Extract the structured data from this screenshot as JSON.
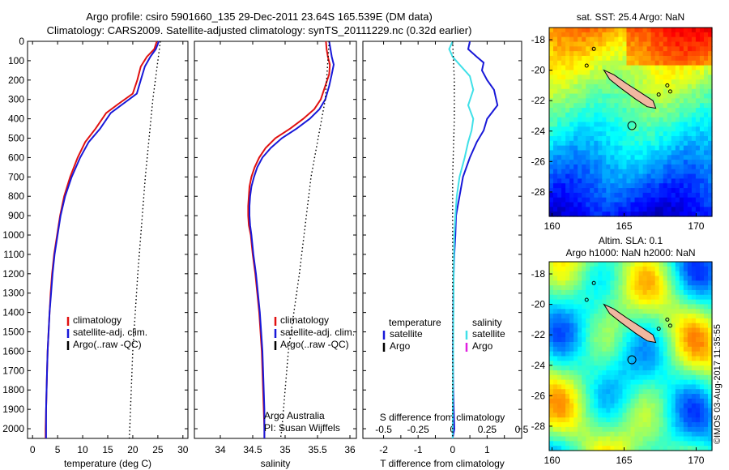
{
  "titles": {
    "line1": "Argo profile: csiro 5901660_135 29-Dec-2011 23.64S 165.539E (DM data)",
    "line2": "Climatology: CARS2009. Satellite-adjusted climatology: synTS_20111229.nc (0.32d earlier)"
  },
  "stamp": "©IMOS 03-Aug-2017 11:35:55",
  "colors": {
    "climatology": "#e01010",
    "satellite": "#1818d8",
    "argo": "#000000",
    "cyan": "#40e0e8",
    "magenta": "#e020e0"
  },
  "chart_data": [
    {
      "type": "line",
      "name": "temperature",
      "xlabel": "temperature (deg C)",
      "ylabel": "",
      "xlim": [
        -1,
        31
      ],
      "ylim": [
        2050,
        0
      ],
      "xticks": [
        0,
        5,
        10,
        15,
        20,
        25,
        30
      ],
      "yticks": [
        0,
        100,
        200,
        300,
        400,
        500,
        600,
        700,
        800,
        900,
        1000,
        1100,
        1200,
        1300,
        1400,
        1500,
        1600,
        1700,
        1800,
        1900,
        2000
      ],
      "legend": {
        "position": "lower-center",
        "entries": [
          "climatology",
          "satellite-adj. clim.",
          "Argo(..raw -QC)"
        ]
      },
      "series": [
        {
          "name": "climatology",
          "color_key": "climatology",
          "points": [
            [
              24.8,
              0
            ],
            [
              24.3,
              40
            ],
            [
              22.8,
              80
            ],
            [
              21.6,
              130
            ],
            [
              20.9,
              200
            ],
            [
              20.0,
              270
            ],
            [
              17.3,
              320
            ],
            [
              14.7,
              370
            ],
            [
              12.6,
              450
            ],
            [
              10.5,
              520
            ],
            [
              9.0,
              600
            ],
            [
              7.5,
              700
            ],
            [
              6.3,
              800
            ],
            [
              5.5,
              900
            ],
            [
              4.9,
              1000
            ],
            [
              4.3,
              1100
            ],
            [
              3.9,
              1200
            ],
            [
              3.6,
              1300
            ],
            [
              3.4,
              1400
            ],
            [
              3.2,
              1500
            ],
            [
              3.0,
              1600
            ],
            [
              2.9,
              1700
            ],
            [
              2.8,
              1800
            ],
            [
              2.7,
              1900
            ],
            [
              2.6,
              2000
            ],
            [
              2.6,
              2050
            ]
          ]
        },
        {
          "name": "satellite-adj. clim.",
          "color_key": "satellite",
          "points": [
            [
              25.2,
              0
            ],
            [
              24.6,
              40
            ],
            [
              23.5,
              80
            ],
            [
              22.4,
              130
            ],
            [
              21.6,
              200
            ],
            [
              20.8,
              270
            ],
            [
              18.2,
              320
            ],
            [
              15.6,
              370
            ],
            [
              13.5,
              450
            ],
            [
              11.2,
              520
            ],
            [
              9.5,
              600
            ],
            [
              7.8,
              700
            ],
            [
              6.5,
              800
            ],
            [
              5.6,
              900
            ],
            [
              5.0,
              1000
            ],
            [
              4.4,
              1100
            ],
            [
              4.0,
              1200
            ],
            [
              3.7,
              1300
            ],
            [
              3.4,
              1400
            ],
            [
              3.2,
              1500
            ],
            [
              3.0,
              1600
            ],
            [
              2.9,
              1700
            ],
            [
              2.8,
              1800
            ],
            [
              2.7,
              1900
            ],
            [
              2.7,
              2000
            ],
            [
              2.7,
              2050
            ]
          ]
        },
        {
          "name": "Argo(..raw -QC)",
          "color_key": "argo",
          "dotted": true,
          "points": [
            [
              25.5,
              0
            ],
            [
              24.0,
              300
            ],
            [
              22.5,
              700
            ],
            [
              21.0,
              1200
            ],
            [
              20.0,
              1600
            ],
            [
              19.4,
              2000
            ],
            [
              19.3,
              2050
            ]
          ]
        }
      ]
    },
    {
      "type": "line",
      "name": "salinity",
      "xlabel": "salinity",
      "ylabel": "",
      "xlim": [
        33.6,
        36.1
      ],
      "ylim": [
        2050,
        0
      ],
      "xticks": [
        34,
        34.5,
        35,
        35.5,
        36
      ],
      "legend": {
        "position": "lower-center",
        "entries": [
          "climatology",
          "satellite-adj. clim.",
          "Argo(..raw -QC)"
        ]
      },
      "annotation": [
        "Argo Australia",
        "PI: Susan Wijffels"
      ],
      "series": [
        {
          "name": "climatology",
          "color_key": "climatology",
          "points": [
            [
              35.63,
              0
            ],
            [
              35.64,
              40
            ],
            [
              35.66,
              80
            ],
            [
              35.69,
              120
            ],
            [
              35.68,
              170
            ],
            [
              35.62,
              230
            ],
            [
              35.55,
              300
            ],
            [
              35.45,
              350
            ],
            [
              35.28,
              400
            ],
            [
              35.08,
              450
            ],
            [
              34.85,
              500
            ],
            [
              34.7,
              550
            ],
            [
              34.6,
              600
            ],
            [
              34.53,
              650
            ],
            [
              34.48,
              700
            ],
            [
              34.45,
              750
            ],
            [
              34.44,
              800
            ],
            [
              34.43,
              850
            ],
            [
              34.43,
              900
            ],
            [
              34.44,
              950
            ],
            [
              34.47,
              1000
            ],
            [
              34.5,
              1100
            ],
            [
              34.54,
              1200
            ],
            [
              34.57,
              1300
            ],
            [
              34.6,
              1400
            ],
            [
              34.62,
              1500
            ],
            [
              34.64,
              1600
            ],
            [
              34.65,
              1700
            ],
            [
              34.66,
              1800
            ],
            [
              34.67,
              1900
            ],
            [
              34.68,
              2000
            ],
            [
              34.68,
              2050
            ]
          ]
        },
        {
          "name": "satellite-adj. clim.",
          "color_key": "satellite",
          "points": [
            [
              35.68,
              0
            ],
            [
              35.7,
              40
            ],
            [
              35.72,
              80
            ],
            [
              35.75,
              120
            ],
            [
              35.72,
              170
            ],
            [
              35.68,
              230
            ],
            [
              35.62,
              300
            ],
            [
              35.53,
              350
            ],
            [
              35.38,
              400
            ],
            [
              35.18,
              450
            ],
            [
              34.95,
              500
            ],
            [
              34.78,
              550
            ],
            [
              34.65,
              600
            ],
            [
              34.57,
              650
            ],
            [
              34.52,
              700
            ],
            [
              34.48,
              750
            ],
            [
              34.46,
              800
            ],
            [
              34.45,
              850
            ],
            [
              34.45,
              900
            ],
            [
              34.46,
              950
            ],
            [
              34.48,
              1000
            ],
            [
              34.51,
              1100
            ],
            [
              34.55,
              1200
            ],
            [
              34.58,
              1300
            ],
            [
              34.61,
              1400
            ],
            [
              34.63,
              1500
            ],
            [
              34.65,
              1600
            ],
            [
              34.66,
              1700
            ],
            [
              34.67,
              1800
            ],
            [
              34.68,
              1900
            ],
            [
              34.68,
              2000
            ],
            [
              34.68,
              2050
            ]
          ]
        },
        {
          "name": "Argo(..raw -QC)",
          "color_key": "argo",
          "dotted": true,
          "points": [
            [
              35.68,
              0
            ],
            [
              35.62,
              300
            ],
            [
              35.4,
              700
            ],
            [
              35.22,
              1200
            ],
            [
              35.05,
              1600
            ],
            [
              34.95,
              2000
            ],
            [
              34.93,
              2050
            ]
          ]
        }
      ]
    },
    {
      "type": "line",
      "name": "differences",
      "xlabel_bottom": "T difference from climatology",
      "xlabel_top": "S difference from climatology",
      "xlim": [
        -2.6,
        2.0
      ],
      "xlim_top": [
        -0.65,
        0.5
      ],
      "ylim": [
        2050,
        0
      ],
      "xticks_bottom": [
        -2,
        -1.5,
        -1,
        -0.5,
        0,
        0.5,
        1,
        1.5
      ],
      "xticks_bottom_labels": [
        "-2",
        "",
        "-1",
        "",
        "0",
        "",
        "1",
        ""
      ],
      "xticks_top": [
        -0.5,
        -0.25,
        0,
        0.25,
        0.5
      ],
      "legend": {
        "position": "lower-center",
        "columns": [
          "temperature",
          "salinity"
        ],
        "entries": [
          "satellite",
          "Argo",
          "satellite",
          "Argo"
        ]
      },
      "series": [
        {
          "name": "temperature satellite",
          "color_key": "satellite",
          "points": [
            [
              0.5,
              0
            ],
            [
              0.45,
              40
            ],
            [
              0.7,
              80
            ],
            [
              0.9,
              110
            ],
            [
              0.85,
              150
            ],
            [
              1.0,
              200
            ],
            [
              1.2,
              250
            ],
            [
              1.3,
              330
            ],
            [
              1.0,
              400
            ],
            [
              0.9,
              460
            ],
            [
              0.7,
              520
            ],
            [
              0.5,
              600
            ],
            [
              0.3,
              700
            ],
            [
              0.2,
              800
            ],
            [
              0.1,
              900
            ],
            [
              0.08,
              1000
            ],
            [
              0.05,
              1100
            ],
            [
              0.03,
              1200
            ],
            [
              0.02,
              1400
            ],
            [
              0.01,
              1600
            ],
            [
              0.02,
              1800
            ],
            [
              0.03,
              1900
            ],
            [
              0.05,
              2000
            ],
            [
              0.0,
              2050
            ]
          ]
        },
        {
          "name": "salinity satellite",
          "color_key": "cyan",
          "points": [
            [
              0.0,
              0
            ],
            [
              -0.1,
              40
            ],
            [
              -0.05,
              60
            ],
            [
              0.0,
              80
            ],
            [
              0.2,
              120
            ],
            [
              0.5,
              180
            ],
            [
              0.6,
              250
            ],
            [
              0.45,
              330
            ],
            [
              0.6,
              400
            ],
            [
              0.55,
              460
            ],
            [
              0.45,
              520
            ],
            [
              0.35,
              600
            ],
            [
              0.2,
              700
            ],
            [
              0.12,
              800
            ],
            [
              0.08,
              900
            ],
            [
              0.05,
              1000
            ],
            [
              0.03,
              1200
            ],
            [
              0.02,
              1500
            ],
            [
              0.01,
              1800
            ],
            [
              0.0,
              2050
            ]
          ]
        },
        {
          "name": "Argo",
          "color_key": "argo",
          "dotted": true,
          "points": [
            [
              0.0,
              0
            ],
            [
              0.05,
              200
            ],
            [
              0.05,
              400
            ],
            [
              0.0,
              700
            ],
            [
              0.0,
              2050
            ]
          ]
        }
      ]
    }
  ],
  "maps": {
    "top": {
      "title": "sat. SST: 25.4  Argo: NaN",
      "xticks": [
        "160",
        "165",
        "170"
      ],
      "yticks": [
        "-18",
        "-20",
        "-22",
        "-24",
        "-26",
        "-28"
      ],
      "colorscale_min": 22.0,
      "colorscale_max": 28.0,
      "marker": {
        "lon": 165.54,
        "lat": -23.64
      }
    },
    "bottom": {
      "title_line1": "Altim. SLA: 0.1",
      "title_line2": "Argo h1000: NaN h2000: NaN",
      "xticks": [
        "160",
        "165",
        "170"
      ],
      "yticks": [
        "-18",
        "-20",
        "-22",
        "-24",
        "-26",
        "-28"
      ],
      "marker": {
        "lon": 165.54,
        "lat": -23.64
      }
    }
  }
}
